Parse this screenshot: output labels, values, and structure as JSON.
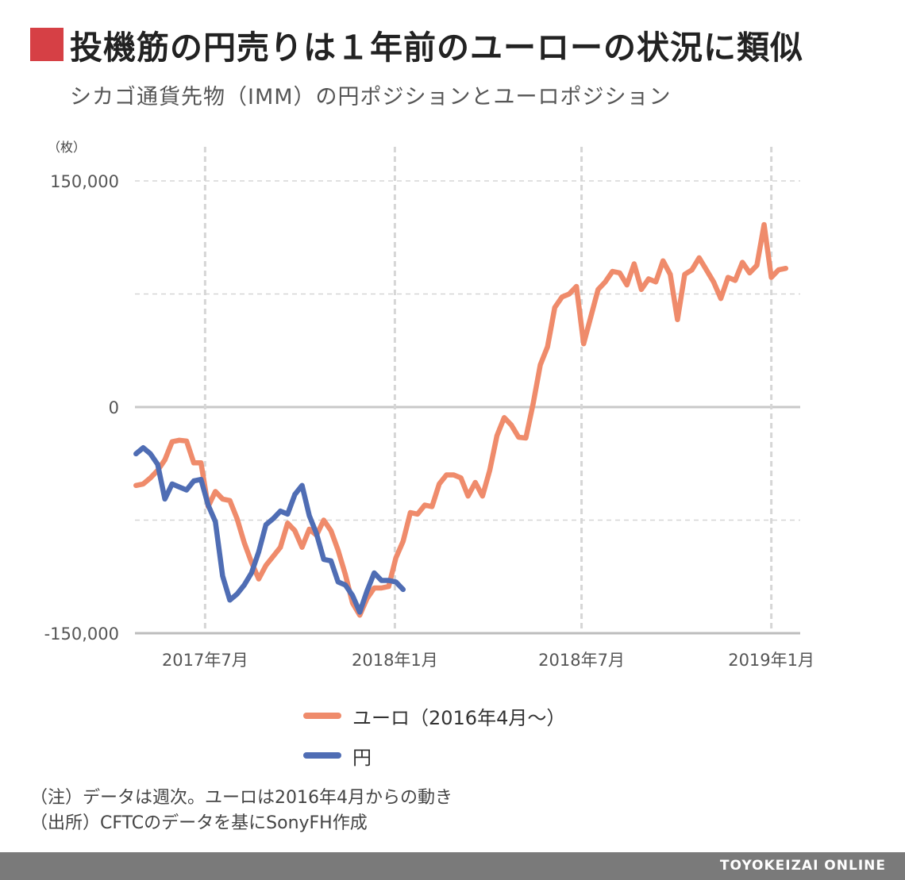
{
  "header": {
    "title": "投機筋の円売りは１年前のユーローの状況に類似",
    "subtitle": "シカゴ通貨先物（IMM）の円ポジションとユーロポジション",
    "accent_color": "#d64045"
  },
  "chart_data": {
    "type": "line",
    "unit_label": "（枚）",
    "ylim": [
      -150000,
      150000
    ],
    "y_ticks": [
      {
        "value": 150000,
        "label": "150,000",
        "labeled": true
      },
      {
        "value": 75000,
        "label": "",
        "labeled": false
      },
      {
        "value": 0,
        "label": "0",
        "labeled": true
      },
      {
        "value": -75000,
        "label": "",
        "labeled": false
      },
      {
        "value": -150000,
        "label": "-150,000",
        "labeled": true
      }
    ],
    "xlim": [
      "2017-04-24",
      "2019-01-29"
    ],
    "x_ticks": [
      {
        "date": "2017-07-01",
        "label": "2017年7月"
      },
      {
        "date": "2018-01-01",
        "label": "2018年1月"
      },
      {
        "date": "2018-07-01",
        "label": "2018年7月"
      },
      {
        "date": "2019-01-01",
        "label": "2019年1月"
      }
    ],
    "grid": true,
    "series": [
      {
        "name": "ユーロ（2016年4月～）",
        "color": "#ef8b6b",
        "points": [
          [
            "2017-04-25",
            -52000
          ],
          [
            "2017-05-02",
            -51000
          ],
          [
            "2017-05-09",
            -47000
          ],
          [
            "2017-05-16",
            -42000
          ],
          [
            "2017-05-23",
            -35000
          ],
          [
            "2017-05-30",
            -23000
          ],
          [
            "2017-06-06",
            -22000
          ],
          [
            "2017-06-13",
            -22500
          ],
          [
            "2017-06-20",
            -37000
          ],
          [
            "2017-06-27",
            -37000
          ],
          [
            "2017-07-04",
            -66000
          ],
          [
            "2017-07-11",
            -56000
          ],
          [
            "2017-07-18",
            -61000
          ],
          [
            "2017-07-25",
            -62000
          ],
          [
            "2017-08-01",
            -74000
          ],
          [
            "2017-08-08",
            -90000
          ],
          [
            "2017-08-15",
            -103000
          ],
          [
            "2017-08-22",
            -114000
          ],
          [
            "2017-08-29",
            -105000
          ],
          [
            "2017-09-05",
            -99000
          ],
          [
            "2017-09-12",
            -93000
          ],
          [
            "2017-09-19",
            -77000
          ],
          [
            "2017-09-26",
            -82000
          ],
          [
            "2017-10-03",
            -93000
          ],
          [
            "2017-10-10",
            -81000
          ],
          [
            "2017-10-17",
            -85000
          ],
          [
            "2017-10-24",
            -75000
          ],
          [
            "2017-10-31",
            -82000
          ],
          [
            "2017-11-07",
            -95000
          ],
          [
            "2017-11-14",
            -111000
          ],
          [
            "2017-11-21",
            -130000
          ],
          [
            "2017-11-28",
            -138000
          ],
          [
            "2017-12-05",
            -127000
          ],
          [
            "2017-12-12",
            -120000
          ],
          [
            "2017-12-19",
            -120000
          ],
          [
            "2017-12-26",
            -119000
          ],
          [
            "2018-01-02",
            -100000
          ],
          [
            "2018-01-09",
            -89000
          ],
          [
            "2018-01-16",
            -70000
          ],
          [
            "2018-01-23",
            -71000
          ],
          [
            "2018-01-30",
            -65000
          ],
          [
            "2018-02-06",
            -66000
          ],
          [
            "2018-02-13",
            -51000
          ],
          [
            "2018-02-20",
            -45000
          ],
          [
            "2018-02-27",
            -45000
          ],
          [
            "2018-03-06",
            -47000
          ],
          [
            "2018-03-13",
            -59000
          ],
          [
            "2018-03-20",
            -50000
          ],
          [
            "2018-03-27",
            -59000
          ],
          [
            "2018-04-03",
            -42000
          ],
          [
            "2018-04-10",
            -19000
          ],
          [
            "2018-04-17",
            -7000
          ],
          [
            "2018-04-24",
            -12000
          ],
          [
            "2018-05-01",
            -20000
          ],
          [
            "2018-05-08",
            -20500
          ],
          [
            "2018-05-15",
            2000
          ],
          [
            "2018-05-22",
            28000
          ],
          [
            "2018-05-29",
            40000
          ],
          [
            "2018-06-05",
            66000
          ],
          [
            "2018-06-12",
            73000
          ],
          [
            "2018-06-19",
            75000
          ],
          [
            "2018-06-26",
            80000
          ],
          [
            "2018-07-03",
            42000
          ],
          [
            "2018-07-10",
            60000
          ],
          [
            "2018-07-17",
            78000
          ],
          [
            "2018-07-24",
            83000
          ],
          [
            "2018-07-31",
            90000
          ],
          [
            "2018-08-07",
            89000
          ],
          [
            "2018-08-14",
            81000
          ],
          [
            "2018-08-21",
            95000
          ],
          [
            "2018-08-28",
            78000
          ],
          [
            "2018-09-04",
            85000
          ],
          [
            "2018-09-11",
            83000
          ],
          [
            "2018-09-18",
            97000
          ],
          [
            "2018-09-25",
            88000
          ],
          [
            "2018-10-02",
            58000
          ],
          [
            "2018-10-09",
            88000
          ],
          [
            "2018-10-16",
            91000
          ],
          [
            "2018-10-23",
            99000
          ],
          [
            "2018-10-30",
            91000
          ],
          [
            "2018-11-06",
            83000
          ],
          [
            "2018-11-13",
            72000
          ],
          [
            "2018-11-20",
            86000
          ],
          [
            "2018-11-27",
            84000
          ],
          [
            "2018-12-04",
            96000
          ],
          [
            "2018-12-11",
            89000
          ],
          [
            "2018-12-18",
            94000
          ],
          [
            "2018-12-25",
            121000
          ],
          [
            "2019-01-01",
            86000
          ],
          [
            "2019-01-08",
            91000
          ],
          [
            "2019-01-15",
            92000
          ]
        ]
      },
      {
        "name": "円",
        "color": "#4f6db4",
        "points": [
          [
            "2017-04-25",
            -31000
          ],
          [
            "2017-05-02",
            -27000
          ],
          [
            "2017-05-09",
            -31000
          ],
          [
            "2017-05-16",
            -38000
          ],
          [
            "2017-05-23",
            -61000
          ],
          [
            "2017-05-30",
            -51000
          ],
          [
            "2017-06-06",
            -53000
          ],
          [
            "2017-06-13",
            -55000
          ],
          [
            "2017-06-20",
            -49000
          ],
          [
            "2017-06-27",
            -48000
          ],
          [
            "2017-07-04",
            -65000
          ],
          [
            "2017-07-11",
            -76000
          ],
          [
            "2017-07-18",
            -112000
          ],
          [
            "2017-07-25",
            -128000
          ],
          [
            "2017-08-01",
            -124000
          ],
          [
            "2017-08-08",
            -118000
          ],
          [
            "2017-08-15",
            -110000
          ],
          [
            "2017-08-22",
            -96000
          ],
          [
            "2017-08-29",
            -78000
          ],
          [
            "2017-09-05",
            -74000
          ],
          [
            "2017-09-12",
            -69000
          ],
          [
            "2017-09-19",
            -71000
          ],
          [
            "2017-09-26",
            -58000
          ],
          [
            "2017-10-03",
            -52000
          ],
          [
            "2017-10-10",
            -72000
          ],
          [
            "2017-10-17",
            -84000
          ],
          [
            "2017-10-24",
            -101000
          ],
          [
            "2017-10-31",
            -102000
          ],
          [
            "2017-11-07",
            -116000
          ],
          [
            "2017-11-14",
            -118000
          ],
          [
            "2017-11-21",
            -125000
          ],
          [
            "2017-11-28",
            -136000
          ],
          [
            "2017-12-05",
            -122000
          ],
          [
            "2017-12-12",
            -110000
          ],
          [
            "2017-12-19",
            -115000
          ],
          [
            "2017-12-26",
            -115000
          ],
          [
            "2018-01-02",
            -116000
          ],
          [
            "2018-01-09",
            -121000
          ]
        ]
      }
    ]
  },
  "notes": [
    "（注）データは週次。ユーロは2016年4月からの動き",
    "（出所）CFTCのデータを基にSonyFH作成"
  ],
  "footer": {
    "brand": "TOYOKEIZAI ONLINE"
  }
}
